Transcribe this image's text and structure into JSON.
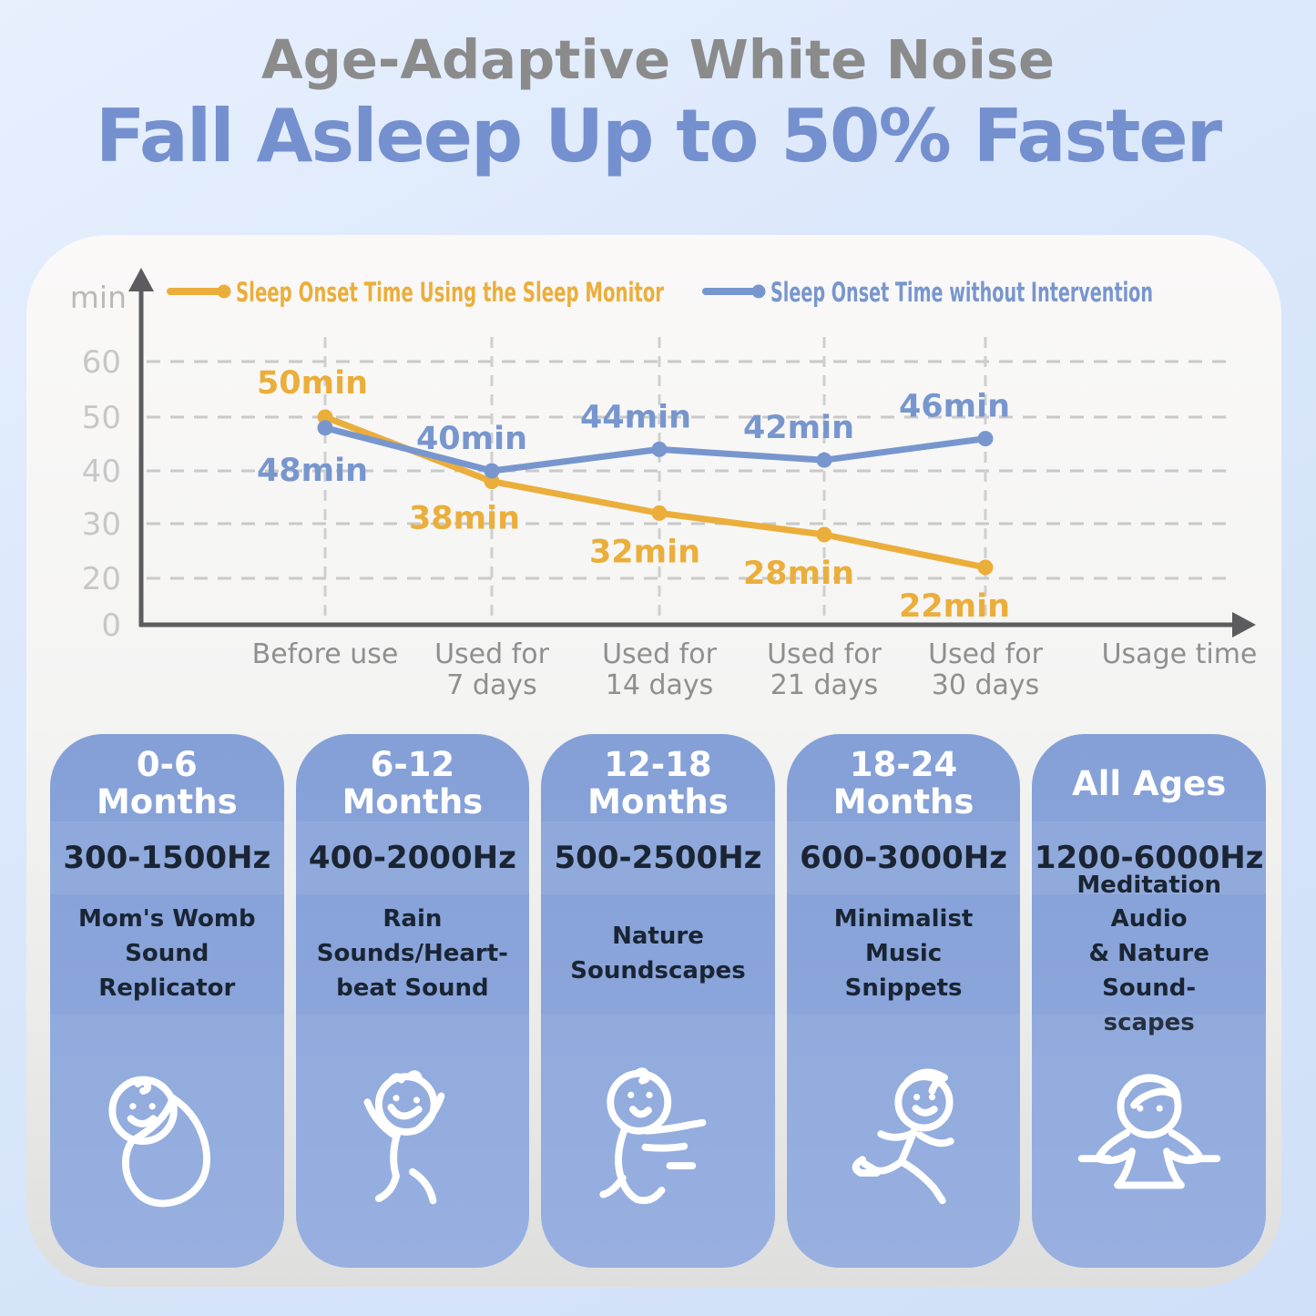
{
  "header": {
    "subtitle": "Age-Adaptive White Noise",
    "title": "Fall Asleep Up to 50% Faster"
  },
  "chart_data": {
    "type": "line",
    "unit_label": "min",
    "x_axis_label": "Usage time",
    "y_ticks": [
      0,
      20,
      30,
      40,
      50,
      60
    ],
    "grid": "dashed",
    "legend_position": "top",
    "categories": [
      "Before use",
      "Used for\n7 days",
      "Used for\n14 days",
      "Used for\n21 days",
      "Used for\n30 days"
    ],
    "series": [
      {
        "name": "Sleep Onset Time Using the Sleep Monitor",
        "color": "#EBAE3B",
        "values": [
          50,
          38,
          32,
          28,
          22
        ],
        "labels": [
          "50min",
          "38min",
          "32min",
          "28min",
          "22min"
        ]
      },
      {
        "name": "Sleep Onset Time without Intervention",
        "color": "#7896CE",
        "values": [
          48,
          40,
          44,
          42,
          46
        ],
        "labels": [
          "48min",
          "40min",
          "44min",
          "42min",
          "46min"
        ]
      }
    ]
  },
  "cards": [
    {
      "age": "0-6\nMonths",
      "frequency": "300-1500Hz",
      "description": "Mom's Womb\nSound Replicator",
      "icon": "swaddled-baby"
    },
    {
      "age": "6-12\nMonths",
      "frequency": "400-2000Hz",
      "description": "Rain\nSounds/Heart-\nbeat Sound",
      "icon": "happy-baby"
    },
    {
      "age": "12-18\nMonths",
      "frequency": "500-2500Hz",
      "description": "Nature\nSoundscapes",
      "icon": "pointing-baby"
    },
    {
      "age": "18-24\nMonths",
      "frequency": "600-3000Hz",
      "description": "Minimalist Music\nSnippets",
      "icon": "running-child"
    },
    {
      "age": "All Ages",
      "frequency": "1200-6000Hz",
      "description": "Meditation Audio\n& Nature Sound-\nscapes",
      "icon": "meditating-child"
    }
  ],
  "colors": {
    "accent_orange": "#EBAE3B",
    "accent_blue": "#7896CE",
    "card_blue": "#89A4DA",
    "title_blue": "#7590CF",
    "title_gray": "#8B8B8B"
  }
}
